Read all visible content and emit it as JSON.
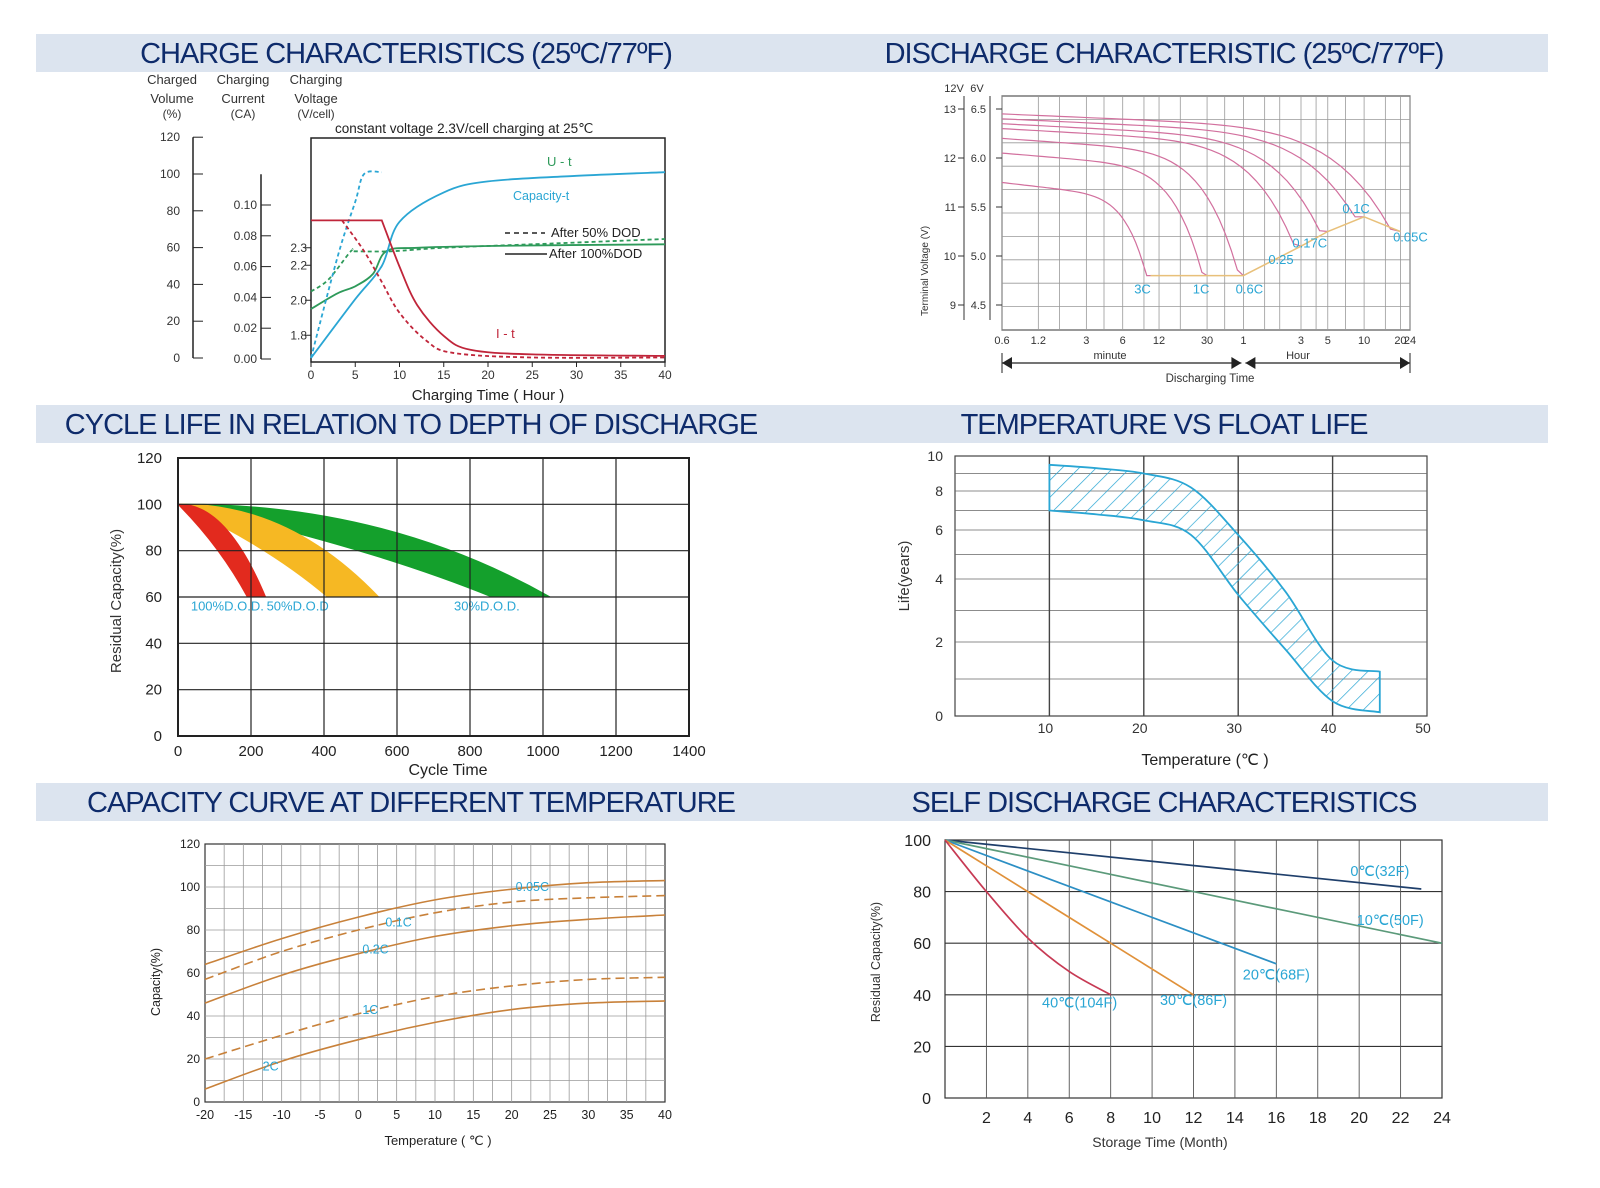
{
  "chart_data": [
    {
      "type": "line",
      "id": "charge",
      "title": "CHARGE CHARACTERISTICS (25ºC/77ºF)",
      "axis_headers": {
        "volume": [
          "Charged",
          "Volume",
          "(%)"
        ],
        "current": [
          "Charging",
          "Current",
          "(CA)"
        ],
        "voltage": [
          "Charging",
          "Voltage",
          "(V/cell)"
        ]
      },
      "subtitle": "constant voltage 2.3V/cell charging at 25℃",
      "xlabel": "Charging Time ( Hour )",
      "xlim": [
        0,
        40
      ],
      "x_ticks": [
        "0",
        "5",
        "10",
        "15",
        "20",
        "25",
        "30",
        "35",
        "40"
      ],
      "volume_ticks": [
        "0",
        "20",
        "40",
        "60",
        "80",
        "100",
        "120"
      ],
      "current_ticks": [
        "0.00",
        "0.02",
        "0.04",
        "0.06",
        "0.08",
        "0.10"
      ],
      "voltage_ticks": [
        "1.8",
        "2.0",
        "2.2",
        "2.3"
      ],
      "legend": [
        "After 50% DOD",
        "After 100%DOD"
      ],
      "labels": {
        "voltage": "U - t",
        "capacity": "Capacity-t",
        "current": "I - t"
      },
      "series": [
        {
          "name": "Charging Voltage (After 100%DOD)",
          "scale": "voltage",
          "color": "#2e9a5a",
          "style": "solid",
          "points": [
            [
              0,
              1.95
            ],
            [
              3,
              2.04
            ],
            [
              5,
              2.08
            ],
            [
              7,
              2.15
            ],
            [
              8.5,
              2.28
            ],
            [
              12,
              2.3
            ],
            [
              20,
              2.31
            ],
            [
              40,
              2.32
            ]
          ]
        },
        {
          "name": "Charging Voltage (After 50% DOD)",
          "scale": "voltage",
          "color": "#2e9a5a",
          "style": "dashed",
          "points": [
            [
              0,
              2.05
            ],
            [
              2,
              2.12
            ],
            [
              4.5,
              2.28
            ],
            [
              5,
              2.28
            ],
            [
              9,
              2.28
            ],
            [
              15,
              2.3
            ],
            [
              25,
              2.32
            ],
            [
              40,
              2.35
            ]
          ]
        },
        {
          "name": "Charged Volume (After 100%DOD)",
          "scale": "volume",
          "color": "#2aa6d4",
          "style": "solid",
          "points": [
            [
              0,
              0
            ],
            [
              5,
              32
            ],
            [
              8,
              50
            ],
            [
              10,
              74
            ],
            [
              15,
              90
            ],
            [
              20,
              96
            ],
            [
              30,
              99
            ],
            [
              40,
              101
            ]
          ]
        },
        {
          "name": "Charged Volume (After 50% DOD)",
          "scale": "volume",
          "color": "#2aa6d4",
          "style": "dashed",
          "points": [
            [
              0,
              0
            ],
            [
              3,
              55
            ],
            [
              5,
              85
            ],
            [
              6,
              100
            ],
            [
              8,
              101
            ]
          ]
        },
        {
          "name": "Charging Current (After 100%DOD)",
          "scale": "current",
          "color": "#c0253a",
          "style": "solid",
          "points": [
            [
              0,
              0.09
            ],
            [
              8,
              0.09
            ],
            [
              10,
              0.06
            ],
            [
              12,
              0.035
            ],
            [
              15,
              0.015
            ],
            [
              18,
              0.006
            ],
            [
              25,
              0.003
            ],
            [
              40,
              0.002
            ]
          ]
        },
        {
          "name": "Charging Current (After 50% DOD)",
          "scale": "current",
          "color": "#c0253a",
          "style": "dashed",
          "points": [
            [
              3.5,
              0.09
            ],
            [
              6,
              0.07
            ],
            [
              8,
              0.05
            ],
            [
              10,
              0.03
            ],
            [
              13,
              0.012
            ],
            [
              16,
              0.004
            ],
            [
              25,
              0.001
            ],
            [
              40,
              0.001
            ]
          ]
        }
      ]
    },
    {
      "type": "line",
      "id": "discharge",
      "title": "DISCHARGE CHARACTERISTIC (25ºC/77ºF)",
      "ylabel": "Terminal Voltage (V)",
      "y_headers": [
        "12V",
        "6V"
      ],
      "y12_ticks": [
        "9",
        "10",
        "11",
        "12",
        "13"
      ],
      "y6_ticks": [
        "4.5",
        "5.0",
        "5.5",
        "6.0",
        "6.5"
      ],
      "x_ticks": [
        "0.6",
        "1.2",
        "3",
        "6",
        "12",
        "30",
        "1",
        "3",
        "5",
        "10",
        "20",
        "24"
      ],
      "x_units": [
        "minute",
        "Hour"
      ],
      "xlabel": "Discharging Time",
      "rates": [
        "3C",
        "1C",
        "0.6C",
        "0.25",
        "0.17C",
        "0.1C",
        "0.05C"
      ],
      "end_voltage_12v": [
        9.6,
        9.6,
        9.6,
        10.2,
        10.5,
        10.8,
        10.5
      ],
      "start_voltage_12v": [
        11.5,
        12.1,
        12.4,
        12.6,
        12.7,
        12.8,
        12.9
      ],
      "end_time_hours": [
        0.17,
        0.5,
        1.0,
        3.0,
        5.0,
        10.0,
        20.0
      ]
    },
    {
      "type": "area",
      "id": "cycle",
      "title": "CYCLE LIFE IN RELATION TO DEPTH OF DISCHARGE",
      "xlabel": "Cycle Time",
      "ylabel": "Residual Capacity(%)",
      "xlim": [
        0,
        1400
      ],
      "ylim": [
        0,
        120
      ],
      "x_ticks": [
        "0",
        "200",
        "400",
        "600",
        "800",
        "1000",
        "1200",
        "1400"
      ],
      "y_ticks": [
        "0",
        "20",
        "40",
        "60",
        "80",
        "100",
        "120"
      ],
      "series": [
        {
          "name": "100%D.O.D.",
          "color": "#e22a1e",
          "end_cycles": [
            190,
            240
          ],
          "end_capacity": 60
        },
        {
          "name": "50%D.O.D",
          "color": "#f6b823",
          "end_cycles": [
            410,
            550
          ],
          "end_capacity": 60
        },
        {
          "name": "30%D.O.D.",
          "color": "#14a02c",
          "end_cycles": [
            860,
            1020
          ],
          "end_capacity": 60
        }
      ]
    },
    {
      "type": "area",
      "id": "float",
      "title": "TEMPERATURE VS FLOAT LIFE",
      "xlabel": "Temperature (℃ )",
      "ylabel": "Life(years)",
      "xlim": [
        0,
        50
      ],
      "x_ticks": [
        "10",
        "20",
        "30",
        "40",
        "50"
      ],
      "y_ticks": [
        "0",
        "2",
        "4",
        "6",
        "8",
        "10"
      ],
      "color": "#2aa6d4",
      "upper": [
        [
          10,
          9.5
        ],
        [
          15,
          9.3
        ],
        [
          20,
          9.0
        ],
        [
          25,
          8.2
        ],
        [
          30,
          5.8
        ],
        [
          35,
          3.6
        ],
        [
          40,
          1.5
        ],
        [
          45,
          1.2
        ]
      ],
      "lower": [
        [
          10,
          7.0
        ],
        [
          15,
          6.8
        ],
        [
          20,
          6.5
        ],
        [
          25,
          5.8
        ],
        [
          30,
          3.5
        ],
        [
          35,
          1.8
        ],
        [
          40,
          0.4
        ],
        [
          45,
          0.1
        ]
      ]
    },
    {
      "type": "line",
      "id": "capacity",
      "title": "CAPACITY CURVE AT DIFFERENT TEMPERATURE",
      "xlabel": "Temperature ( ℃ )",
      "ylabel": "Capacity(%)",
      "xlim": [
        -20,
        40
      ],
      "ylim": [
        0,
        120
      ],
      "x_ticks": [
        "-20",
        "-15",
        "-10",
        "-5",
        "0",
        "5",
        "10",
        "15",
        "20",
        "25",
        "30",
        "35",
        "40"
      ],
      "y_ticks": [
        "0",
        "20",
        "40",
        "60",
        "80",
        "100",
        "120"
      ],
      "color": "#c8813a",
      "series": [
        {
          "name": "0.05C",
          "style": "solid",
          "values": [
            [
              -20,
              64
            ],
            [
              -10,
              76
            ],
            [
              0,
              86
            ],
            [
              10,
              94
            ],
            [
              20,
              99
            ],
            [
              30,
              102
            ],
            [
              40,
              103
            ]
          ]
        },
        {
          "name": "0.1C",
          "style": "dashed",
          "values": [
            [
              -20,
              57
            ],
            [
              -10,
              70
            ],
            [
              0,
              80
            ],
            [
              10,
              88
            ],
            [
              20,
              93
            ],
            [
              30,
              95
            ],
            [
              40,
              96
            ]
          ]
        },
        {
          "name": "0.2C",
          "style": "solid",
          "values": [
            [
              -20,
              46
            ],
            [
              -10,
              59
            ],
            [
              0,
              69
            ],
            [
              10,
              77
            ],
            [
              20,
              82
            ],
            [
              30,
              85
            ],
            [
              40,
              87
            ]
          ]
        },
        {
          "name": "1C",
          "style": "dashed",
          "values": [
            [
              -20,
              20
            ],
            [
              -10,
              31
            ],
            [
              0,
              41
            ],
            [
              10,
              49
            ],
            [
              20,
              54
            ],
            [
              30,
              57
            ],
            [
              40,
              58
            ]
          ]
        },
        {
          "name": "2C",
          "style": "solid",
          "values": [
            [
              -20,
              6
            ],
            [
              -10,
              19
            ],
            [
              0,
              29
            ],
            [
              10,
              37
            ],
            [
              20,
              43
            ],
            [
              30,
              46
            ],
            [
              40,
              47
            ]
          ]
        }
      ]
    },
    {
      "type": "line",
      "id": "self",
      "title": "SELF DISCHARGE CHARACTERISTICS",
      "xlabel": "Storage Time (Month)",
      "ylabel": "Residual Capacity(%)",
      "xlim": [
        0,
        24
      ],
      "ylim": [
        0,
        100
      ],
      "x_ticks": [
        "2",
        "4",
        "6",
        "8",
        "10",
        "12",
        "14",
        "16",
        "18",
        "20",
        "22",
        "24"
      ],
      "y_ticks": [
        "0",
        "20",
        "40",
        "60",
        "80",
        "100"
      ],
      "series": [
        {
          "name": "0℃(32F)",
          "color": "#1f3f6b",
          "values": [
            [
              0,
              100
            ],
            [
              23,
              81
            ]
          ]
        },
        {
          "name": "10℃(50F)",
          "color": "#5b9a7a",
          "values": [
            [
              0,
              100
            ],
            [
              12,
              80
            ],
            [
              24,
              60
            ]
          ]
        },
        {
          "name": "20℃(68F)",
          "color": "#2c8fc4",
          "values": [
            [
              0,
              100
            ],
            [
              8,
              76
            ],
            [
              16,
              52
            ]
          ]
        },
        {
          "name": "30℃(86F)",
          "color": "#e0913a",
          "values": [
            [
              0,
              100
            ],
            [
              2,
              90
            ],
            [
              4,
              80
            ],
            [
              8,
              60
            ],
            [
              12,
              40
            ]
          ]
        },
        {
          "name": "40℃(104F)",
          "color": "#c73a54",
          "values": [
            [
              0,
              100
            ],
            [
              2,
              80
            ],
            [
              4,
              62
            ],
            [
              6,
              49
            ],
            [
              8,
              40
            ]
          ]
        }
      ]
    }
  ]
}
